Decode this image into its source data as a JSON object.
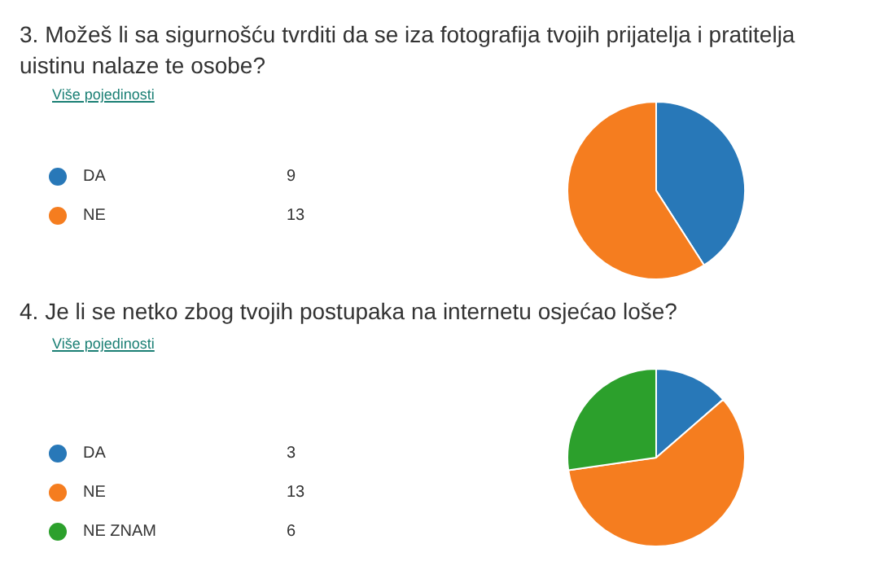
{
  "chart_data": [
    {
      "type": "pie",
      "title": "3. Možeš li sa sigurnošću tvrditi da se iza fotografija tvojih prijatelja i pratitelja uistinu nalaze te osobe?",
      "annotations": [
        "Više pojedinosti"
      ],
      "categories": [
        "DA",
        "NE"
      ],
      "values": [
        9,
        13
      ],
      "colors": [
        "#2878b8",
        "#f57d1f"
      ],
      "legend": "left",
      "data_labels": true
    },
    {
      "type": "pie",
      "title": "4. Je li se netko zbog tvojih postupaka na internetu osjećao loše?",
      "annotations": [
        "Više pojedinosti"
      ],
      "categories": [
        "DA",
        "NE",
        "NE ZNAM"
      ],
      "values": [
        3,
        13,
        6
      ],
      "colors": [
        "#2878b8",
        "#f57d1f",
        "#2ca02c"
      ],
      "legend": "left",
      "data_labels": true
    }
  ]
}
